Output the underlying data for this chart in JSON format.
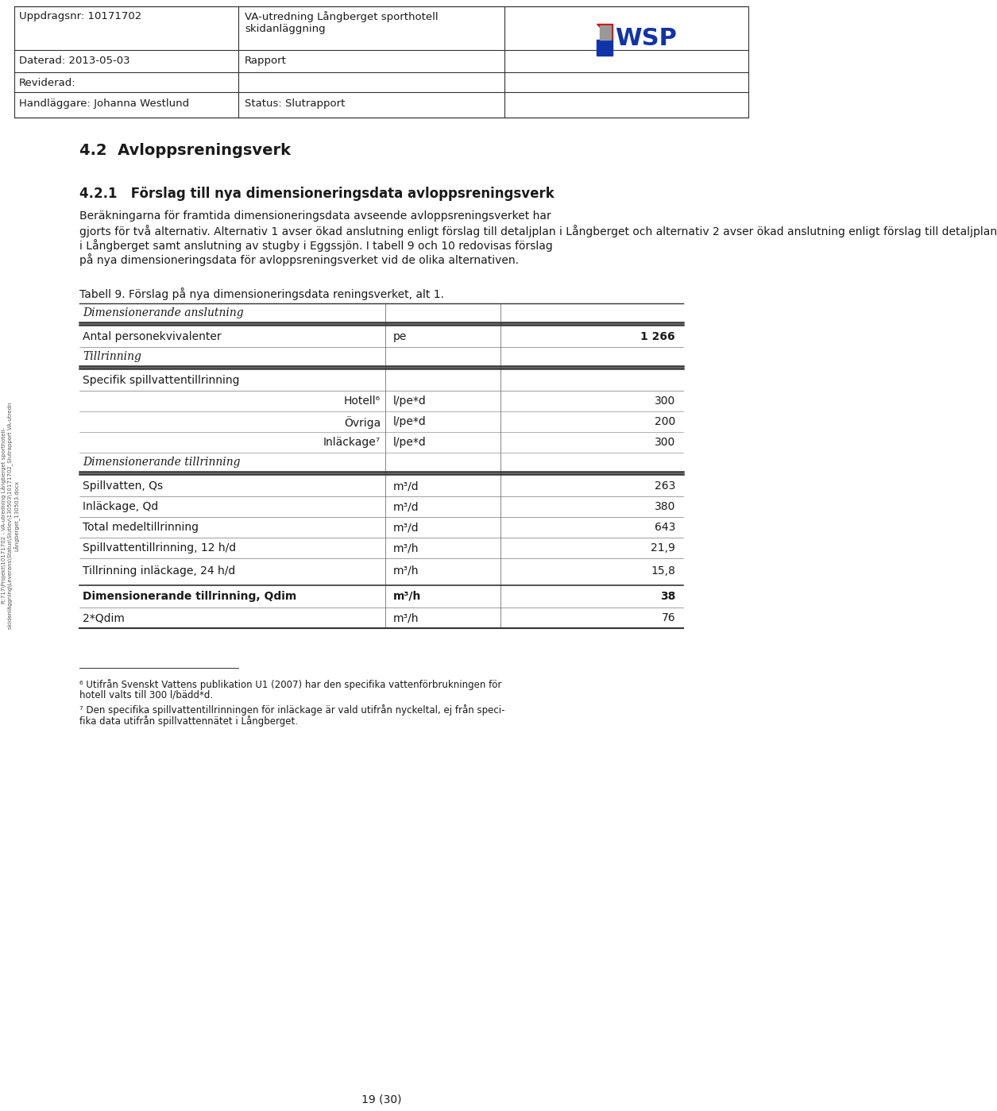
{
  "header": {
    "cell11": "Uppdragsnr: 10171702",
    "cell12": "VA-utredning Långberget sporthotell\nskidanläggning",
    "cell21": "Daterad: 2013-05-03",
    "cell22": "Rapport",
    "cell31": "Reviderad:",
    "cell32": "",
    "cell41": "Handläggare: Johanna Westlund",
    "cell42": "Status: Slutrapport"
  },
  "section_title": "4.2  Avloppsreningsverk",
  "subsection_title": "4.2.1   Förslag till nya dimensioneringsdata avloppsreningsverk",
  "body_lines": [
    "Beräkningarna för framtida dimensioneringsdata avseende avloppsreningsverket har",
    "gjorts för två alternativ. Alternativ 1 avser ökad anslutning enligt förslag till detaljplan i Långberget och alternativ 2 avser ökad anslutning enligt förslag till detaljplan",
    "i Långberget samt anslutning av stugby i Eggssjön. I tabell 9 och 10 redovisas förslag",
    "på nya dimensioneringsdata för avloppsreningsverket vid de olika alternativen."
  ],
  "table_caption": "Tabell 9. Förslag på nya dimensioneringsdata reningsverket, alt 1.",
  "footnote6_line1": "⁶ Utifrån Svenskt Vattens publikation U1 (2007) har den specifika vattenförbrukningen för",
  "footnote6_line2": "hotell valts till 300 l/bädd*d.",
  "footnote7_line1": "⁷ Den specifika spillvattentillrinningen för inläckage är vald utifrån nyckeltal, ej från speci-",
  "footnote7_line2": "fika data utifrån spillvattennätet i Långberget.",
  "page_number": "19 (30)",
  "sidebar_text": "R:717\\Projekt\\10171702 - VA-utredning Långberget sporthotell-\nskidanläggning\\Leverans\\Status\\Slutlev\\130503\\10171702_Slutrapport VA-utredn\nLångberget_130503.docx",
  "table_rows": [
    {
      "type": "italic_header",
      "col1": "Dimensionerande anslutning",
      "col2": "",
      "col3": ""
    },
    {
      "type": "double_line_above",
      "col1": "",
      "col2": "",
      "col3": ""
    },
    {
      "type": "data",
      "col1": "Antal personekvivalenter",
      "col2": "pe",
      "col3": "1 266",
      "bold3": true
    },
    {
      "type": "italic_header",
      "col1": "Tillrinning",
      "col2": "",
      "col3": ""
    },
    {
      "type": "double_line_above",
      "col1": "",
      "col2": "",
      "col3": ""
    },
    {
      "type": "data",
      "col1": "Specifik spillvattentillrinning",
      "col2": "",
      "col3": ""
    },
    {
      "type": "data_indent",
      "col1": "Hotell⁶",
      "col2": "l/pe*d",
      "col3": "300"
    },
    {
      "type": "data_indent",
      "col1": "Övriga",
      "col2": "l/pe*d",
      "col3": "200"
    },
    {
      "type": "data_indent",
      "col1": "Inläckage⁷",
      "col2": "l/pe*d",
      "col3": "300"
    },
    {
      "type": "italic_header",
      "col1": "Dimensionerande tillrinning",
      "col2": "",
      "col3": ""
    },
    {
      "type": "double_line_above",
      "col1": "",
      "col2": "",
      "col3": ""
    },
    {
      "type": "data",
      "col1": "Spillvatten, Qs",
      "col2": "m³/d",
      "col3": "263"
    },
    {
      "type": "data",
      "col1": "Inläckage, Qd",
      "col2": "m³/d",
      "col3": "380"
    },
    {
      "type": "data",
      "col1": "Total medeltillrinning",
      "col2": "m³/d",
      "col3": "643"
    },
    {
      "type": "data",
      "col1": "Spillvattentillrinning, 12 h/d",
      "col2": "m³/h",
      "col3": "21,9"
    },
    {
      "type": "data_gap",
      "col1": "Tillrinning inläckage, 24 h/d",
      "col2": "m³/h",
      "col3": "15,8"
    },
    {
      "type": "bold_data",
      "col1": "Dimensionerande tillrinning, Qdim",
      "col2": "m³/h",
      "col3": "38"
    },
    {
      "type": "data",
      "col1": "2*Qdim",
      "col2": "m³/h",
      "col3": "76"
    }
  ],
  "col1_subscripts": {
    "Spillvatten, Qs": "s",
    "Inläckage, Qd": "d",
    "Dimensionerande tillrinning, Qdim": "dim"
  },
  "bg_color": "#ffffff",
  "text_color": "#1a1a1a",
  "line_color": "#333333"
}
